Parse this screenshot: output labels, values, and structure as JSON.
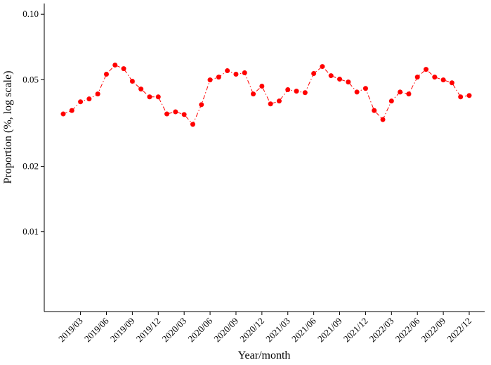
{
  "chart_data": {
    "type": "line",
    "x_label": "Year/month",
    "y_label": "Proportion (%, log scale)",
    "categories": [
      null,
      null,
      "2019/03",
      null,
      null,
      "2019/06",
      null,
      null,
      "2019/09",
      null,
      null,
      "2019/12",
      null,
      null,
      "2020/03",
      null,
      null,
      "2020/06",
      null,
      null,
      "2020/09",
      null,
      null,
      "2020/12",
      null,
      null,
      "2021/03",
      null,
      null,
      "2021/06",
      null,
      null,
      "2021/09",
      null,
      null,
      "2021/12",
      null,
      null,
      "2022/03",
      null,
      null,
      "2022/06",
      null,
      null,
      "2022/09",
      null,
      null,
      "2022/12"
    ],
    "values": [
      0.0348,
      0.0361,
      0.0396,
      0.0408,
      0.043,
      0.053,
      0.0584,
      0.0562,
      0.0492,
      0.0453,
      0.0417,
      0.0417,
      0.0348,
      0.0356,
      0.0346,
      0.0312,
      0.0384,
      0.0499,
      0.0514,
      0.055,
      0.053,
      0.0538,
      0.043,
      0.0467,
      0.0387,
      0.0399,
      0.045,
      0.0443,
      0.0436,
      0.0534,
      0.0575,
      0.0522,
      0.0503,
      0.0488,
      0.0439,
      0.0456,
      0.0361,
      0.0328,
      0.0399,
      0.0439,
      0.043,
      0.0514,
      0.0558,
      0.0514,
      0.0499,
      0.0484,
      0.0417,
      0.0423
    ],
    "color": "#ff0000",
    "line_style": "dashdot",
    "log_scale": true,
    "ylim": [
      0.0043,
      0.112
    ],
    "yticks": [
      0.01,
      0.02,
      0.05,
      {
        "value": 0.1,
        "label": "0.10"
      }
    ]
  }
}
